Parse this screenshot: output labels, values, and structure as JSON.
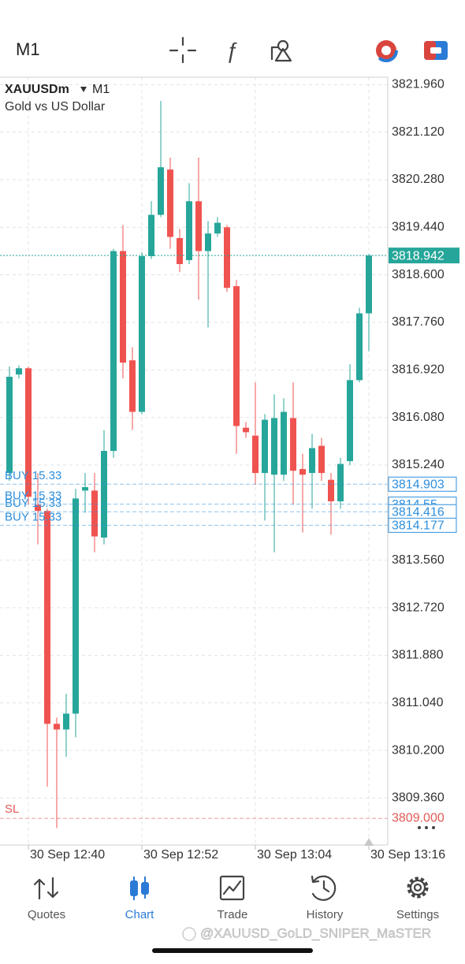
{
  "top_bar": {
    "timeframe": "M1"
  },
  "chart_data": {
    "type": "candlestick",
    "symbol": "XAUUSDm",
    "timeframe": "M1",
    "description": "Gold vs US Dollar",
    "categories": [
      null,
      null,
      "30 Sep 12:40",
      null,
      null,
      null,
      null,
      null,
      null,
      null,
      null,
      null,
      null,
      null,
      "30 Sep 12:52",
      null,
      null,
      null,
      null,
      null,
      null,
      null,
      null,
      null,
      null,
      null,
      "30 Sep 13:04",
      null,
      null,
      null,
      null,
      null,
      null,
      null,
      null,
      null,
      null,
      null,
      "30 Sep 13:16"
    ],
    "open": [
      3815.1,
      3816.84,
      3816.95,
      3814.54,
      3814.43,
      3810.67,
      3810.57,
      3810.85,
      3814.79,
      3814.79,
      3813.96,
      3815.49,
      3819.02,
      3817.09,
      3816.18,
      3818.93,
      3819.66,
      3820.46,
      3819.25,
      3818.86,
      3819.9,
      3819.02,
      3819.33,
      3819.44,
      3818.4,
      3815.9,
      3815.76,
      3815.1,
      3815.07,
      3815.07,
      3816.07,
      3815.17,
      3815.1,
      3815.58,
      3814.98,
      3814.6,
      3815.31,
      3816.74,
      3817.92
    ],
    "high": [
      3816.98,
      3817.0,
      3816.98,
      3815.1,
      3814.47,
      3810.78,
      3811.2,
      3814.82,
      3815.1,
      3815.1,
      3815.86,
      3819.06,
      3819.48,
      3817.32,
      3819.0,
      3819.9,
      3821.67,
      3820.67,
      3819.41,
      3820.22,
      3820.67,
      3819.55,
      3819.62,
      3819.48,
      3818.51,
      3816.0,
      3816.7,
      3816.14,
      3816.49,
      3816.42,
      3816.7,
      3815.44,
      3815.79,
      3815.72,
      3815.1,
      3815.37,
      3817.02,
      3818.02,
      3818.97
    ],
    "low": [
      3814.96,
      3816.77,
      3814.54,
      3813.84,
      3809.56,
      3808.83,
      3810.09,
      3810.43,
      3814.4,
      3813.7,
      3813.84,
      3815.37,
      3816.77,
      3815.86,
      3816.14,
      3818.88,
      3819.62,
      3819.06,
      3818.65,
      3818.79,
      3818.16,
      3817.67,
      3819.27,
      3818.3,
      3815.44,
      3815.72,
      3814.89,
      3814.26,
      3813.7,
      3814.96,
      3814.54,
      3814.05,
      3814.47,
      3814.96,
      3814.01,
      3814.47,
      3815.24,
      3816.7,
      3817.25
    ],
    "close": [
      3816.8,
      3816.95,
      3814.68,
      3814.43,
      3810.67,
      3810.57,
      3810.85,
      3814.65,
      3814.85,
      3813.98,
      3815.49,
      3819.02,
      3817.05,
      3816.18,
      3818.93,
      3819.66,
      3820.5,
      3819.27,
      3818.79,
      3819.9,
      3819.02,
      3819.33,
      3819.52,
      3818.37,
      3815.93,
      3815.82,
      3815.1,
      3816.04,
      3816.07,
      3816.18,
      3815.14,
      3815.07,
      3815.54,
      3815.1,
      3814.6,
      3815.26,
      3816.74,
      3817.92,
      3818.94
    ],
    "up_color": "#26a69a",
    "down_color": "#ef5350",
    "ylim": [
      3808.53,
      3822.09
    ],
    "yticks": [
      {
        "value": 3821.96,
        "label": "3821.960"
      },
      {
        "value": 3821.12,
        "label": "3821.120"
      },
      {
        "value": 3820.28,
        "label": "3820.280"
      },
      {
        "value": 3819.44,
        "label": "3819.440"
      },
      {
        "value": 3818.6,
        "label": "3818.600"
      },
      {
        "value": 3817.76,
        "label": "3817.760"
      },
      {
        "value": 3816.92,
        "label": "3816.920"
      },
      {
        "value": 3816.08,
        "label": "3816.080"
      },
      {
        "value": 3815.24,
        "label": "3815.240"
      },
      {
        "value": 3813.56,
        "label": "3813.560"
      },
      {
        "value": 3812.72,
        "label": "3812.720"
      },
      {
        "value": 3811.88,
        "label": "3811.880"
      },
      {
        "value": 3811.04,
        "label": "3811.040"
      },
      {
        "value": 3810.2,
        "label": "3810.200"
      },
      {
        "value": 3809.36,
        "label": "3809.360"
      }
    ],
    "grid": true,
    "current_price": {
      "value": 3818.942,
      "color": "#26a69a"
    },
    "orders": [
      {
        "label": "BUY 15.33",
        "price": 3814.55
      },
      {
        "label": "BUY 15.33",
        "price": 3814.903
      },
      {
        "label": "BUY 15.33",
        "price": 3814.416
      },
      {
        "label": "BUY 15.33",
        "price": 3814.177
      }
    ],
    "order_color": "#2f8fdc",
    "stop_loss": {
      "label": "SL",
      "value": {
        "value": 3809,
        "label": "3809.000"
      },
      "color": "#e05a55"
    }
  },
  "nav": {
    "tabs": [
      "Quotes",
      "Chart",
      "Trade",
      "History",
      "Settings"
    ],
    "active": 1
  },
  "watermark": "@XAUUSD_GoLD_SNIPER_MaSTER"
}
